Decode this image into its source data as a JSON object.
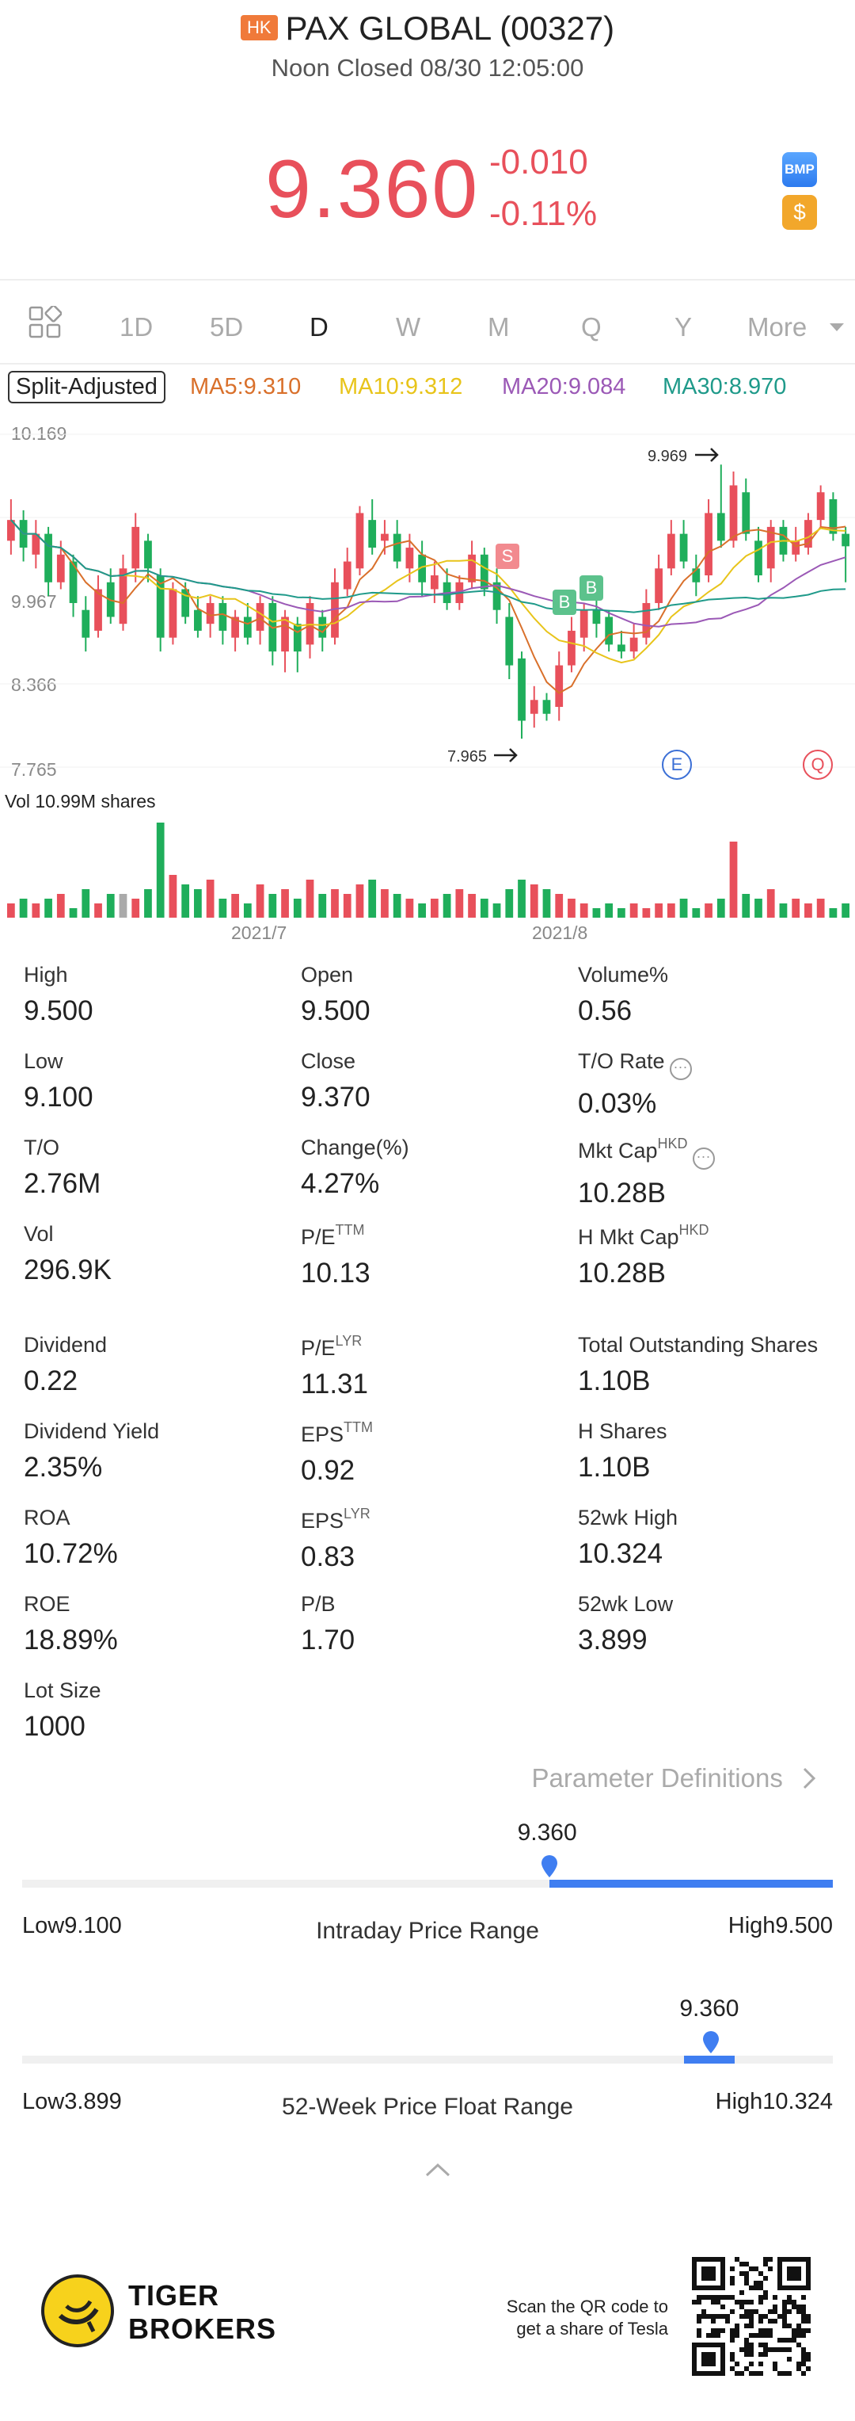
{
  "header": {
    "market_badge": "HK",
    "title": "PAX GLOBAL (00327)",
    "status": "Noon Closed 08/30 12:05:00",
    "price": "9.360",
    "change_abs": "-0.010",
    "change_pct": "-0.11%",
    "bmp_label": "BMP",
    "coin_label": "$"
  },
  "tabs": [
    "1D",
    "5D",
    "D",
    "W",
    "M",
    "Q",
    "Y",
    "More"
  ],
  "active_tab": "D",
  "ma_row": {
    "split_label": "Split-Adjusted",
    "ma5": "MA5:9.310",
    "ma10": "MA10:9.312",
    "ma20": "MA20:9.084",
    "ma30": "MA30:8.970",
    "colors": {
      "ma5": "#d9702b",
      "ma10": "#e8c41a",
      "ma20": "#9b59b6",
      "ma30": "#1f9a8a"
    }
  },
  "chart_data": {
    "type": "candlestick",
    "y_ticks": [
      "10.169",
      "9.967",
      "8.366",
      "7.765"
    ],
    "y_tick_hidden": "9.568",
    "ylim": [
      7.765,
      10.169
    ],
    "x_ticks": [
      "2021/7",
      "2021/8"
    ],
    "annotations": {
      "high": "9.969",
      "low": "7.965",
      "sell": "S",
      "buy": "B",
      "earnings": "E",
      "q": "Q"
    },
    "volume_label": "Vol   10.99M shares",
    "colors": {
      "up": "#e8505b",
      "down": "#1fae5b"
    },
    "candles": [
      {
        "o": 9.4,
        "c": 9.55,
        "h": 9.7,
        "l": 9.3
      },
      {
        "o": 9.55,
        "c": 9.35,
        "h": 9.62,
        "l": 9.25
      },
      {
        "o": 9.3,
        "c": 9.45,
        "h": 9.55,
        "l": 9.2
      },
      {
        "o": 9.45,
        "c": 9.1,
        "h": 9.5,
        "l": 9.0
      },
      {
        "o": 9.1,
        "c": 9.3,
        "h": 9.4,
        "l": 9.05
      },
      {
        "o": 9.25,
        "c": 8.95,
        "h": 9.3,
        "l": 8.85
      },
      {
        "o": 8.9,
        "c": 8.7,
        "h": 9.0,
        "l": 8.6
      },
      {
        "o": 8.75,
        "c": 9.05,
        "h": 9.15,
        "l": 8.7
      },
      {
        "o": 9.1,
        "c": 8.85,
        "h": 9.2,
        "l": 8.8
      },
      {
        "o": 8.8,
        "c": 9.2,
        "h": 9.3,
        "l": 8.75
      },
      {
        "o": 9.2,
        "c": 9.5,
        "h": 9.6,
        "l": 9.1
      },
      {
        "o": 9.4,
        "c": 9.2,
        "h": 9.45,
        "l": 9.1
      },
      {
        "o": 9.15,
        "c": 8.7,
        "h": 9.2,
        "l": 8.6
      },
      {
        "o": 8.7,
        "c": 9.05,
        "h": 9.1,
        "l": 8.65
      },
      {
        "o": 9.05,
        "c": 8.85,
        "h": 9.1,
        "l": 8.8
      },
      {
        "o": 8.9,
        "c": 8.75,
        "h": 9.0,
        "l": 8.7
      },
      {
        "o": 8.8,
        "c": 8.95,
        "h": 9.0,
        "l": 8.7
      },
      {
        "o": 8.95,
        "c": 8.75,
        "h": 9.0,
        "l": 8.65
      },
      {
        "o": 8.7,
        "c": 8.85,
        "h": 8.9,
        "l": 8.6
      },
      {
        "o": 8.85,
        "c": 8.7,
        "h": 8.95,
        "l": 8.65
      },
      {
        "o": 8.75,
        "c": 8.95,
        "h": 9.0,
        "l": 8.65
      },
      {
        "o": 8.95,
        "c": 8.6,
        "h": 9.0,
        "l": 8.5
      },
      {
        "o": 8.6,
        "c": 8.85,
        "h": 8.9,
        "l": 8.45
      },
      {
        "o": 8.8,
        "c": 8.6,
        "h": 8.85,
        "l": 8.45
      },
      {
        "o": 8.65,
        "c": 8.95,
        "h": 9.0,
        "l": 8.55
      },
      {
        "o": 8.85,
        "c": 8.7,
        "h": 8.9,
        "l": 8.6
      },
      {
        "o": 8.7,
        "c": 9.1,
        "h": 9.2,
        "l": 8.65
      },
      {
        "o": 9.05,
        "c": 9.25,
        "h": 9.35,
        "l": 9.0
      },
      {
        "o": 9.2,
        "c": 9.6,
        "h": 9.65,
        "l": 9.15
      },
      {
        "o": 9.55,
        "c": 9.35,
        "h": 9.7,
        "l": 9.3
      },
      {
        "o": 9.4,
        "c": 9.45,
        "h": 9.55,
        "l": 9.3
      },
      {
        "o": 9.45,
        "c": 9.25,
        "h": 9.55,
        "l": 9.2
      },
      {
        "o": 9.2,
        "c": 9.35,
        "h": 9.45,
        "l": 9.1
      },
      {
        "o": 9.3,
        "c": 9.1,
        "h": 9.4,
        "l": 9.0
      },
      {
        "o": 9.05,
        "c": 9.15,
        "h": 9.25,
        "l": 8.95
      },
      {
        "o": 9.1,
        "c": 8.95,
        "h": 9.2,
        "l": 8.9
      },
      {
        "o": 8.95,
        "c": 9.1,
        "h": 9.15,
        "l": 8.9
      },
      {
        "o": 9.1,
        "c": 9.3,
        "h": 9.4,
        "l": 9.05
      },
      {
        "o": 9.3,
        "c": 9.05,
        "h": 9.35,
        "l": 9.0
      },
      {
        "o": 9.1,
        "c": 8.9,
        "h": 9.2,
        "l": 8.8
      },
      {
        "o": 8.85,
        "c": 8.5,
        "h": 8.95,
        "l": 8.4
      },
      {
        "o": 8.55,
        "c": 8.1,
        "h": 8.6,
        "l": 7.97
      },
      {
        "o": 8.15,
        "c": 8.25,
        "h": 8.35,
        "l": 8.05
      },
      {
        "o": 8.25,
        "c": 8.15,
        "h": 8.3,
        "l": 8.1
      },
      {
        "o": 8.2,
        "c": 8.5,
        "h": 8.6,
        "l": 8.1
      },
      {
        "o": 8.5,
        "c": 8.75,
        "h": 8.85,
        "l": 8.45
      },
      {
        "o": 8.7,
        "c": 8.9,
        "h": 8.95,
        "l": 8.6
      },
      {
        "o": 8.9,
        "c": 8.8,
        "h": 9.0,
        "l": 8.7
      },
      {
        "o": 8.85,
        "c": 8.65,
        "h": 8.9,
        "l": 8.6
      },
      {
        "o": 8.65,
        "c": 8.6,
        "h": 8.75,
        "l": 8.55
      },
      {
        "o": 8.6,
        "c": 8.7,
        "h": 8.8,
        "l": 8.55
      },
      {
        "o": 8.7,
        "c": 8.95,
        "h": 9.05,
        "l": 8.65
      },
      {
        "o": 8.95,
        "c": 9.2,
        "h": 9.3,
        "l": 8.9
      },
      {
        "o": 9.2,
        "c": 9.45,
        "h": 9.55,
        "l": 9.15
      },
      {
        "o": 9.45,
        "c": 9.25,
        "h": 9.55,
        "l": 9.2
      },
      {
        "o": 9.2,
        "c": 9.1,
        "h": 9.3,
        "l": 9.0
      },
      {
        "o": 9.15,
        "c": 9.6,
        "h": 9.7,
        "l": 9.1
      },
      {
        "o": 9.6,
        "c": 9.4,
        "h": 9.95,
        "l": 9.35
      },
      {
        "o": 9.4,
        "c": 9.8,
        "h": 9.9,
        "l": 9.35
      },
      {
        "o": 9.75,
        "c": 9.45,
        "h": 9.85,
        "l": 9.4
      },
      {
        "o": 9.4,
        "c": 9.15,
        "h": 9.5,
        "l": 9.1
      },
      {
        "o": 9.2,
        "c": 9.5,
        "h": 9.55,
        "l": 9.1
      },
      {
        "o": 9.5,
        "c": 9.3,
        "h": 9.55,
        "l": 9.25
      },
      {
        "o": 9.3,
        "c": 9.4,
        "h": 9.5,
        "l": 9.25
      },
      {
        "o": 9.35,
        "c": 9.55,
        "h": 9.6,
        "l": 9.3
      },
      {
        "o": 9.55,
        "c": 9.75,
        "h": 9.8,
        "l": 9.5
      },
      {
        "o": 9.7,
        "c": 9.45,
        "h": 9.75,
        "l": 9.4
      },
      {
        "o": 9.45,
        "c": 9.36,
        "h": 9.5,
        "l": 9.1
      }
    ],
    "volume": [
      3,
      4,
      3,
      4,
      5,
      2,
      6,
      3,
      5,
      5,
      4,
      6,
      20,
      9,
      7,
      6,
      8,
      4,
      5,
      3,
      7,
      5,
      6,
      4,
      8,
      5,
      6,
      5,
      7,
      8,
      6,
      5,
      4,
      3,
      4,
      5,
      6,
      5,
      4,
      3,
      6,
      8,
      7,
      6,
      5,
      4,
      3,
      2,
      3,
      2,
      3,
      2,
      3,
      3,
      4,
      2,
      3,
      4,
      16,
      5,
      4,
      6,
      3,
      4,
      3,
      4,
      2,
      3
    ]
  },
  "stats": [
    {
      "label": "High",
      "value": "9.500"
    },
    {
      "label": "Open",
      "value": "9.500"
    },
    {
      "label": "Volume%",
      "value": "0.56"
    },
    {
      "label": "Low",
      "value": "9.100"
    },
    {
      "label": "Close",
      "value": "9.370"
    },
    {
      "label": "T/O Rate",
      "value": "0.03%",
      "info": true
    },
    {
      "label": "T/O",
      "value": "2.76M"
    },
    {
      "label": "Change(%)",
      "value": "4.27%"
    },
    {
      "label": "Mkt Cap",
      "sup": "HKD",
      "value": "10.28B",
      "info": true
    },
    {
      "label": "Vol",
      "value": "296.9K"
    },
    {
      "label": "P/E",
      "sup": "TTM",
      "value": "10.13"
    },
    {
      "label": "H Mkt Cap",
      "sup": "HKD",
      "value": "10.28B"
    },
    {
      "label": "Dividend",
      "value": "0.22"
    },
    {
      "label": "P/E",
      "sup": "LYR",
      "value": "11.31"
    },
    {
      "label": "Total Outstanding Shares",
      "value": "1.10B"
    },
    {
      "label": "Dividend Yield",
      "value": "2.35%"
    },
    {
      "label": "EPS",
      "sup": "TTM",
      "value": "0.92"
    },
    {
      "label": "H Shares",
      "value": "1.10B"
    },
    {
      "label": "ROA",
      "value": "10.72%"
    },
    {
      "label": "EPS",
      "sup": "LYR",
      "value": "0.83"
    },
    {
      "label": "52wk High",
      "value": "10.324"
    },
    {
      "label": "ROE",
      "value": "18.89%"
    },
    {
      "label": "P/B",
      "value": "1.70"
    },
    {
      "label": "52wk Low",
      "value": "3.899"
    },
    {
      "label": "Lot Size",
      "value": "1000"
    }
  ],
  "param_link": "Parameter Definitions",
  "intraday_range": {
    "current": "9.360",
    "low_label": "Low9.100",
    "high_label": "High9.500",
    "title": "Intraday Price Range",
    "low": 9.1,
    "high": 9.5,
    "value": 9.36
  },
  "week52_range": {
    "current": "9.360",
    "low_label": "Low3.899",
    "high_label": "High10.324",
    "title": "52-Week Price Float Range",
    "low": 3.899,
    "high": 10.324,
    "value": 9.36
  },
  "footer": {
    "brand_line1": "TIGER",
    "brand_line2": "BROKERS",
    "scan_line1": "Scan the QR code to",
    "scan_line2": "get a share of Tesla"
  }
}
